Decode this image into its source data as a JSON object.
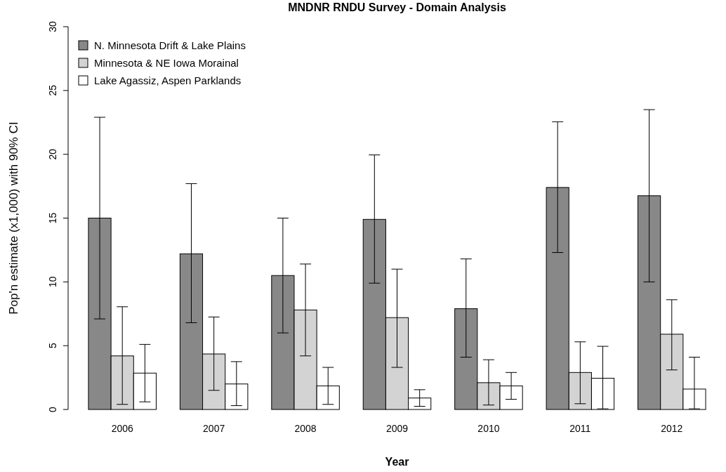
{
  "chart_data": {
    "type": "bar",
    "title": "MNDNR RNDU Survey - Domain Analysis",
    "xlabel": "Year",
    "ylabel": "Pop'n estimate (x1,000) with 90% CI",
    "categories": [
      "2006",
      "2007",
      "2008",
      "2009",
      "2010",
      "2011",
      "2012"
    ],
    "series": [
      {
        "name": "N. Minnesota Drift & Lake Plains",
        "color": "#888888",
        "values": [
          15.0,
          12.2,
          10.5,
          14.9,
          7.9,
          17.4,
          16.75
        ],
        "errors": [
          [
            7.1,
            22.9
          ],
          [
            6.8,
            17.7
          ],
          [
            6.0,
            15.0
          ],
          [
            9.9,
            19.95
          ],
          [
            4.1,
            11.8
          ],
          [
            12.3,
            22.55
          ],
          [
            10.0,
            23.5
          ]
        ]
      },
      {
        "name": "Minnesota & NE Iowa Morainal",
        "color": "#d3d3d3",
        "values": [
          4.2,
          4.35,
          7.8,
          7.2,
          2.1,
          2.9,
          5.9
        ],
        "errors": [
          [
            0.4,
            8.05
          ],
          [
            1.5,
            7.25
          ],
          [
            4.2,
            11.4
          ],
          [
            3.3,
            11.0
          ],
          [
            0.35,
            3.9
          ],
          [
            0.45,
            5.3
          ],
          [
            3.1,
            8.6
          ]
        ]
      },
      {
        "name": "Lake Agassiz, Aspen Parklands",
        "color": "#ffffff",
        "values": [
          2.85,
          2.0,
          1.85,
          0.9,
          1.85,
          2.45,
          1.6
        ],
        "errors": [
          [
            0.6,
            5.1
          ],
          [
            0.3,
            3.75
          ],
          [
            0.4,
            3.3
          ],
          [
            0.25,
            1.55
          ],
          [
            0.8,
            2.9
          ],
          [
            0.05,
            4.95
          ],
          [
            0.05,
            4.1
          ]
        ]
      }
    ],
    "ylim": [
      0,
      30
    ],
    "yticks": [
      0,
      5,
      10,
      15,
      20,
      25,
      30
    ],
    "legend": "top left",
    "grid": false
  }
}
